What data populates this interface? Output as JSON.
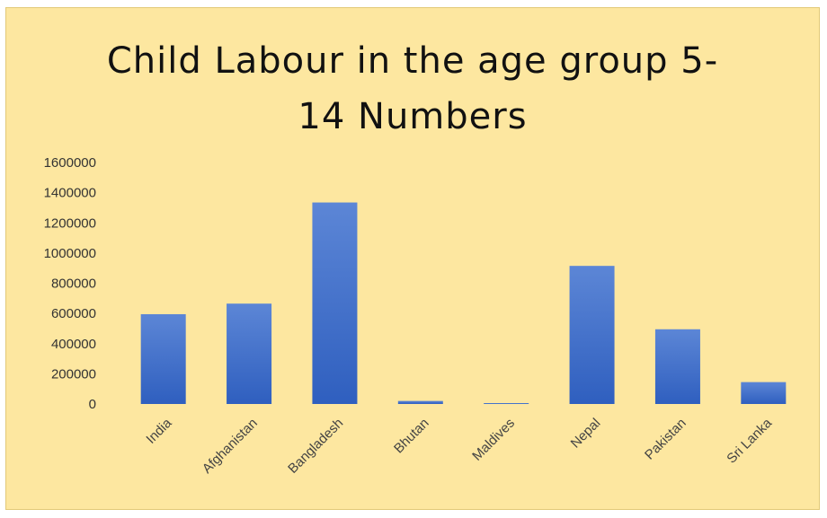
{
  "chart_data": {
    "type": "bar",
    "title_lines": [
      "Child Labour in the age group 5-",
      "14 Numbers"
    ],
    "categories": [
      "India",
      "Afghanistan",
      "Bangladesh",
      "Bhutan",
      "Maldives",
      "Nepal",
      "Pakistan",
      "Sri Lanka"
    ],
    "values": [
      595000,
      665000,
      1335000,
      20000,
      5000,
      915000,
      495000,
      145000
    ],
    "ylim": [
      0,
      1600000
    ],
    "yticks": [
      "0",
      "200000",
      "400000",
      "600000",
      "800000",
      "1000000",
      "1200000",
      "1400000",
      "1600000"
    ],
    "grid": false,
    "legend": "none",
    "colors": {
      "background": "#fde7a0",
      "bar_top": "#5c86d6",
      "bar_bottom": "#2f5fbf"
    }
  }
}
